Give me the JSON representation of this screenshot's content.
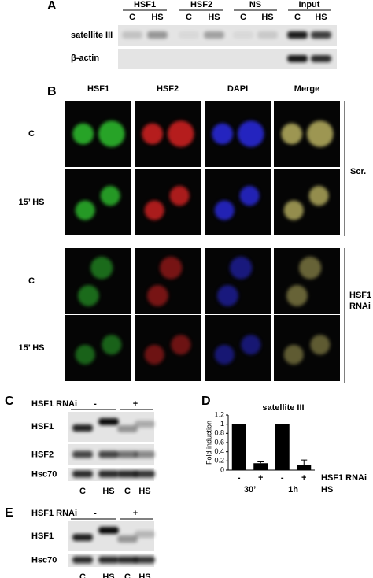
{
  "panel_labels": [
    "A",
    "B",
    "C",
    "D",
    "E"
  ],
  "panel_a": {
    "groups": [
      {
        "name": "HSF1",
        "lanes": [
          "C",
          "HS"
        ]
      },
      {
        "name": "HSF2",
        "lanes": [
          "C",
          "HS"
        ]
      },
      {
        "name": "NS",
        "lanes": [
          "C",
          "HS"
        ]
      },
      {
        "name": "Input",
        "lanes": [
          "C",
          "HS"
        ]
      }
    ],
    "rows": [
      "satellite III",
      "β-actin"
    ]
  },
  "panel_b": {
    "columns": [
      "HSF1",
      "HSF2",
      "DAPI",
      "Merge"
    ],
    "rows": [
      "C",
      "15’ HS",
      "C",
      "15’ HS"
    ],
    "groups": [
      "Scr.",
      "HSF1 RNAi"
    ]
  },
  "panel_c": {
    "treatment_label": "HSF1 RNAi",
    "treatments": [
      "-",
      "+"
    ],
    "rows": [
      "HSF1",
      "HSF2",
      "Hsc70"
    ],
    "lanes": [
      "C",
      "HS",
      "C",
      "HS"
    ]
  },
  "chart_data": {
    "type": "bar",
    "title": "satellite III",
    "ylabel": "Fold induction",
    "categories": [
      "-",
      "+",
      "-",
      "+"
    ],
    "category_axis_label": "HSF1 RNAi",
    "groups": [
      "30’",
      "1h"
    ],
    "group_axis_label": "HS",
    "values": [
      1,
      0.15,
      1,
      0.12
    ],
    "errors": [
      0,
      0.03,
      0,
      0.1
    ],
    "color": "#000000",
    "ylim": [
      0,
      1.2
    ],
    "yticks": [
      0,
      0.2,
      0.4,
      0.6,
      0.8,
      1,
      1.2
    ]
  },
  "panel_e": {
    "treatment_label": "HSF1 RNAi",
    "treatments": [
      "-",
      "+"
    ],
    "rows": [
      "HSF1",
      "Hsc70"
    ],
    "lanes": [
      "C",
      "HS",
      "C",
      "HS"
    ]
  }
}
